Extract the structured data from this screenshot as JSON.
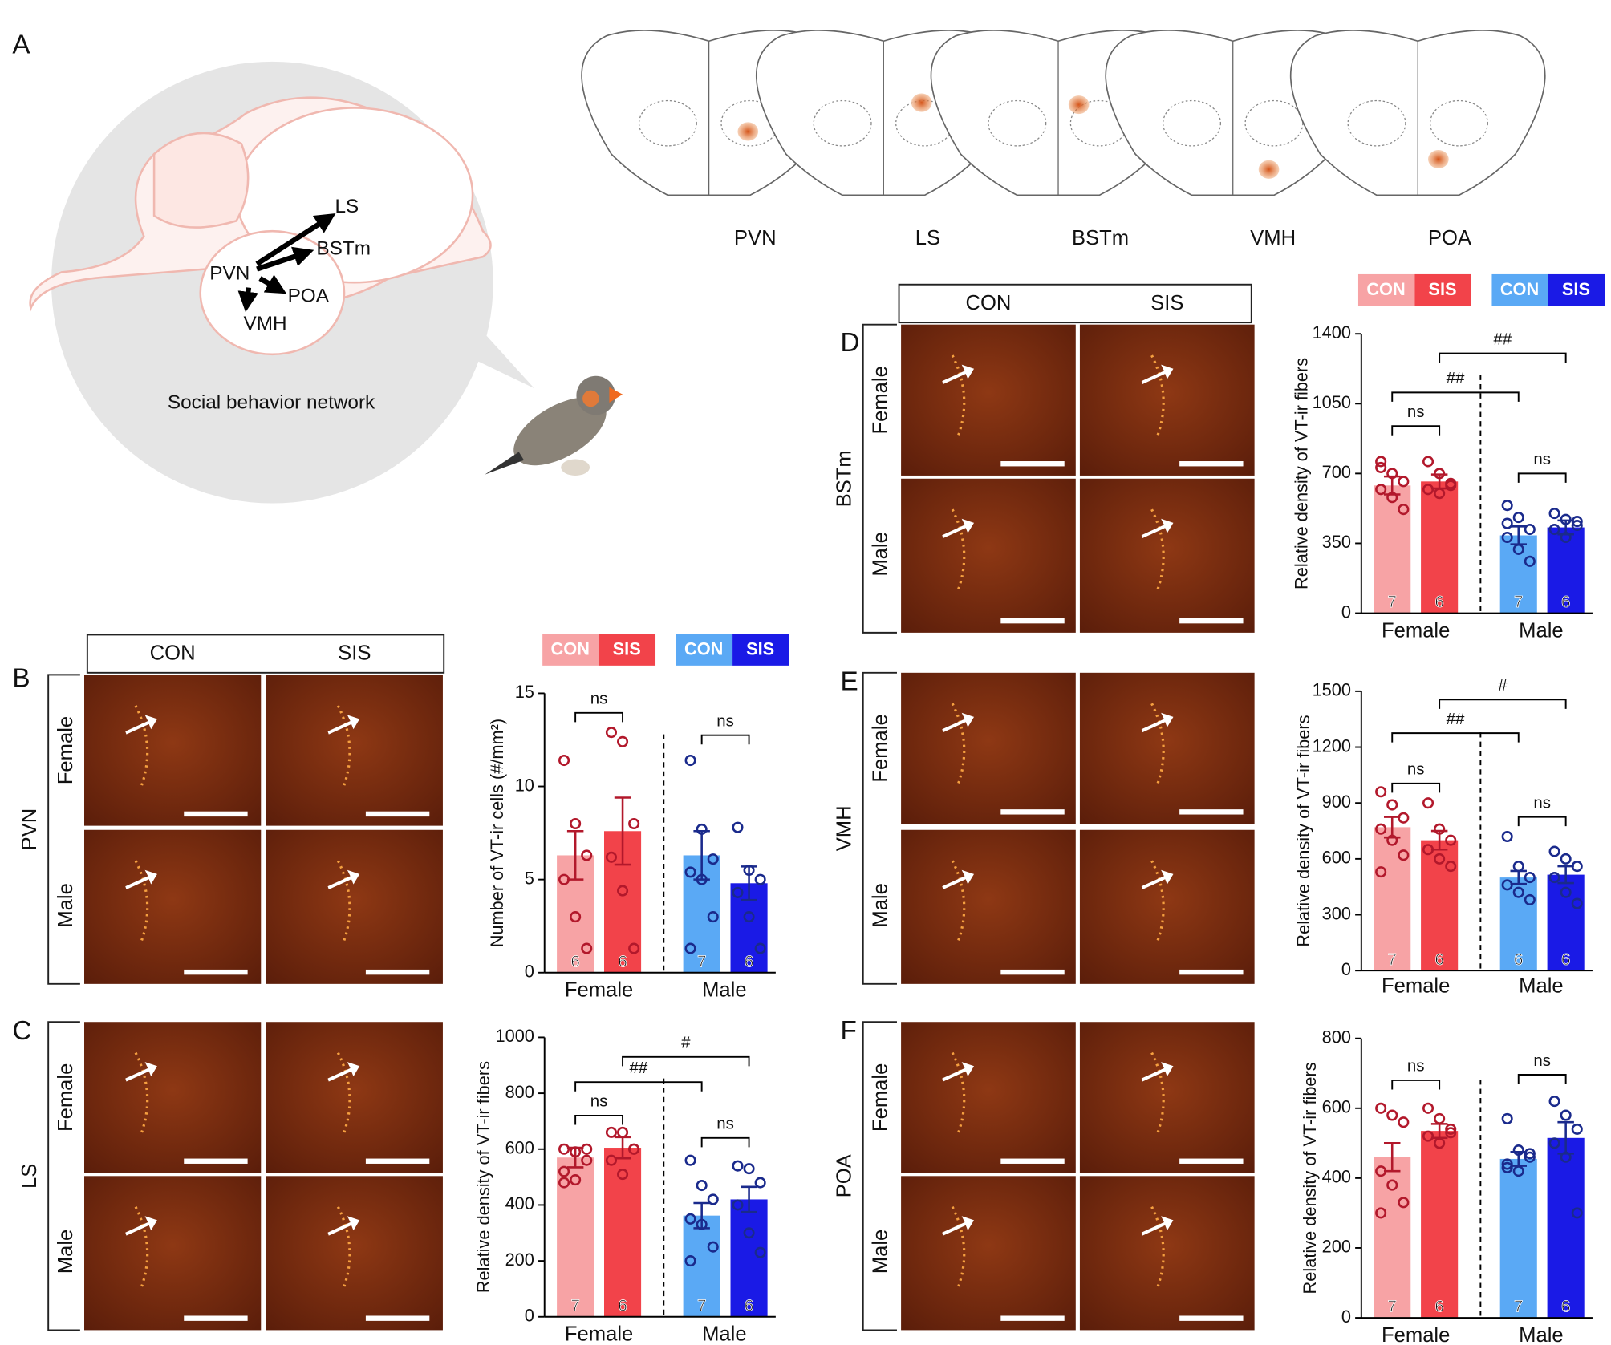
{
  "figure": {
    "panel_letters": [
      "A",
      "B",
      "C",
      "D",
      "E",
      "F"
    ],
    "network": {
      "nodes": [
        "LS",
        "BSTm",
        "PVN",
        "POA",
        "VMH"
      ],
      "caption": "Social behavior network"
    },
    "atlas_labels": [
      "PVN",
      "LS",
      "BSTm",
      "VMH",
      "POA"
    ],
    "columns": [
      "CON",
      "SIS"
    ],
    "rows": [
      "Female",
      "Male"
    ],
    "regions": [
      "PVN",
      "LS",
      "BSTm",
      "VMH",
      "POA"
    ]
  },
  "chart_data": [
    {
      "type": "bar",
      "ylabel": "Number of VT-ir cells (#/mm²)",
      "categories": [
        "Female",
        "Male"
      ],
      "ylim": [
        0,
        15
      ],
      "yticks": [
        0,
        5,
        10,
        15
      ],
      "legend": true,
      "point_colors": [
        "#b2182b",
        "#1a2a8c"
      ],
      "series": [
        {
          "name": "CON",
          "colors": [
            "#f7a3a5",
            "#5aa9f5"
          ],
          "values": [
            6.3,
            6.3
          ],
          "errors": [
            1.3,
            1.3
          ],
          "n": [
            6,
            7
          ],
          "points": [
            [
              11.4,
              8,
              6.3,
              5,
              3,
              1.3
            ],
            [
              11.4,
              7.7,
              6.1,
              5.4,
              5,
              3,
              1.3
            ]
          ]
        },
        {
          "name": "SIS",
          "colors": [
            "#f2434a",
            "#1a1ae6"
          ],
          "values": [
            7.6,
            4.8
          ],
          "errors": [
            1.8,
            0.9
          ],
          "n": [
            6,
            6
          ],
          "points": [
            [
              12.9,
              12.4,
              8,
              6.2,
              4.4,
              1.3
            ],
            [
              7.8,
              5.5,
              5,
              4.3,
              3,
              1.3
            ]
          ]
        }
      ],
      "annotations": [
        "ns",
        "ns"
      ]
    },
    {
      "type": "bar",
      "ylabel": "Relative density of VT-ir fibers",
      "categories": [
        "Female",
        "Male"
      ],
      "ylim": [
        0,
        1000
      ],
      "yticks": [
        0,
        200,
        400,
        600,
        800,
        1000
      ],
      "legend": false,
      "point_colors": [
        "#b2182b",
        "#1a2a8c"
      ],
      "series": [
        {
          "name": "CON",
          "colors": [
            "#f7a3a5",
            "#5aa9f5"
          ],
          "values": [
            570,
            362
          ],
          "errors": [
            35,
            45
          ],
          "n": [
            7,
            7
          ],
          "points": [
            [
              600,
              590,
              560,
              520,
              490,
              600,
              480
            ],
            [
              560,
              470,
              420,
              350,
              330,
              250,
              200
            ]
          ]
        },
        {
          "name": "SIS",
          "colors": [
            "#f2434a",
            "#1a1ae6"
          ],
          "values": [
            605,
            420
          ],
          "errors": [
            38,
            45
          ],
          "n": [
            6,
            6
          ],
          "points": [
            [
              660,
              660,
              600,
              560,
              510,
              600
            ],
            [
              540,
              530,
              480,
              400,
              300,
              230
            ]
          ]
        }
      ],
      "annotations": [
        "ns",
        "##",
        "#",
        "ns"
      ]
    },
    {
      "type": "bar",
      "ylabel": "Relative density of VT-ir fibers",
      "categories": [
        "Female",
        "Male"
      ],
      "ylim": [
        0,
        1400
      ],
      "yticks": [
        0,
        350,
        700,
        1050,
        1400
      ],
      "legend": true,
      "point_colors": [
        "#b2182b",
        "#1a2a8c"
      ],
      "series": [
        {
          "name": "CON",
          "colors": [
            "#f7a3a5",
            "#5aa9f5"
          ],
          "values": [
            640,
            390
          ],
          "errors": [
            45,
            45
          ],
          "n": [
            7,
            7
          ],
          "points": [
            [
              760,
              700,
              660,
              620,
              580,
              520,
              730
            ],
            [
              540,
              480,
              420,
              380,
              320,
              260,
              450
            ]
          ]
        },
        {
          "name": "SIS",
          "colors": [
            "#f2434a",
            "#1a1ae6"
          ],
          "values": [
            660,
            430
          ],
          "errors": [
            35,
            35
          ],
          "n": [
            6,
            6
          ],
          "points": [
            [
              760,
              700,
              650,
              620,
              600,
              640
            ],
            [
              500,
              470,
              440,
              420,
              380,
              460
            ]
          ]
        }
      ],
      "annotations": [
        "ns",
        "##",
        "##",
        "ns"
      ]
    },
    {
      "type": "bar",
      "ylabel": "Relative density of VT-ir fibers",
      "categories": [
        "Female",
        "Male"
      ],
      "ylim": [
        0,
        1500
      ],
      "yticks": [
        0,
        300,
        600,
        900,
        1200,
        1500
      ],
      "legend": false,
      "point_colors": [
        "#b2182b",
        "#1a2a8c"
      ],
      "series": [
        {
          "name": "CON",
          "colors": [
            "#f7a3a5",
            "#5aa9f5"
          ],
          "values": [
            770,
            500
          ],
          "errors": [
            55,
            35
          ],
          "n": [
            7,
            6
          ],
          "points": [
            [
              960,
              890,
              820,
              760,
              700,
              620,
              530
            ],
            [
              720,
              560,
              500,
              460,
              420,
              380
            ]
          ]
        },
        {
          "name": "SIS",
          "colors": [
            "#f2434a",
            "#1a1ae6"
          ],
          "values": [
            700,
            515
          ],
          "errors": [
            50,
            45
          ],
          "n": [
            6,
            6
          ],
          "points": [
            [
              900,
              760,
              700,
              650,
              600,
              560
            ],
            [
              640,
              600,
              560,
              500,
              420,
              360
            ]
          ]
        }
      ],
      "annotations": [
        "ns",
        "##",
        "#",
        "ns"
      ]
    },
    {
      "type": "bar",
      "ylabel": "Relative density of VT-ir fibers",
      "categories": [
        "Female",
        "Male"
      ],
      "ylim": [
        0,
        800
      ],
      "yticks": [
        0,
        200,
        400,
        600,
        800
      ],
      "legend": false,
      "point_colors": [
        "#b2182b",
        "#1a2a8c"
      ],
      "series": [
        {
          "name": "CON",
          "colors": [
            "#f7a3a5",
            "#5aa9f5"
          ],
          "values": [
            460,
            455
          ],
          "errors": [
            40,
            20
          ],
          "n": [
            7,
            7
          ],
          "points": [
            [
              600,
              580,
              560,
              420,
              380,
              330,
              300
            ],
            [
              570,
              480,
              460,
              440,
              420,
              470,
              430
            ]
          ]
        },
        {
          "name": "SIS",
          "colors": [
            "#f2434a",
            "#1a1ae6"
          ],
          "values": [
            535,
            515
          ],
          "errors": [
            20,
            45
          ],
          "n": [
            6,
            6
          ],
          "points": [
            [
              600,
              570,
              540,
              520,
              500,
              530
            ],
            [
              620,
              580,
              540,
              500,
              460,
              300
            ]
          ]
        }
      ],
      "annotations": [
        "ns",
        "ns"
      ]
    }
  ]
}
